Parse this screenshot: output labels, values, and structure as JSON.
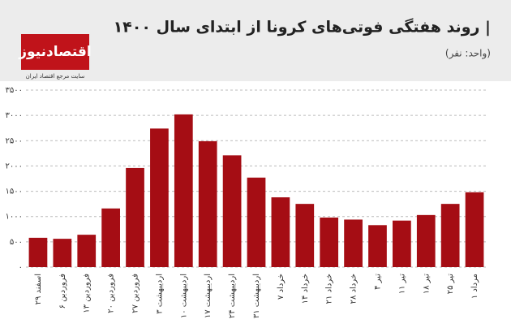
{
  "chart_data": {
    "type": "bar",
    "title": "| روند هفتگی فوتی‌های کرونا از ابتدای سال ۱۴۰۰",
    "subtitle": "(واحد: نفر)",
    "logo": "اقتصادنیوز",
    "logo_tagline": "سایت مرجع اقتصاد ایران",
    "categories": [
      "۲۹ اسفند",
      "۶ فروردین",
      "۱۳ فروردین",
      "۲۰ فروردین",
      "۲۷ فروردین",
      "۳ اردیبهشت",
      "۱۰ اردیبهشت",
      "۱۷ اردیبهشت",
      "۲۴ اردیبهشت",
      "۳۱ اردیبهشت",
      "۷ خرداد",
      "۱۴ خرداد",
      "۲۱ خرداد",
      "۲۸ خرداد",
      "۴ تیر",
      "۱۱ تیر",
      "۱۸ تیر",
      "۲۵ تیر",
      "۱ مرداد"
    ],
    "values": [
      580,
      560,
      640,
      1160,
      1960,
      2740,
      3020,
      2490,
      2210,
      1770,
      1380,
      1250,
      980,
      940,
      830,
      920,
      1030,
      1250,
      1480
    ],
    "color": "#a50d14",
    "ylim": [
      0,
      3500
    ],
    "yticks": [
      {
        "value": 0,
        "label": "۰"
      },
      {
        "value": 500,
        "label": "۵۰۰"
      },
      {
        "value": 1000,
        "label": "۱۰۰۰"
      },
      {
        "value": 1500,
        "label": "۱۵۰۰"
      },
      {
        "value": 2000,
        "label": "۲۰۰۰"
      },
      {
        "value": 2500,
        "label": "۲۵۰۰"
      },
      {
        "value": 3000,
        "label": "۳۰۰۰"
      },
      {
        "value": 3500,
        "label": "۳۵۰۰"
      }
    ],
    "grid": true
  }
}
